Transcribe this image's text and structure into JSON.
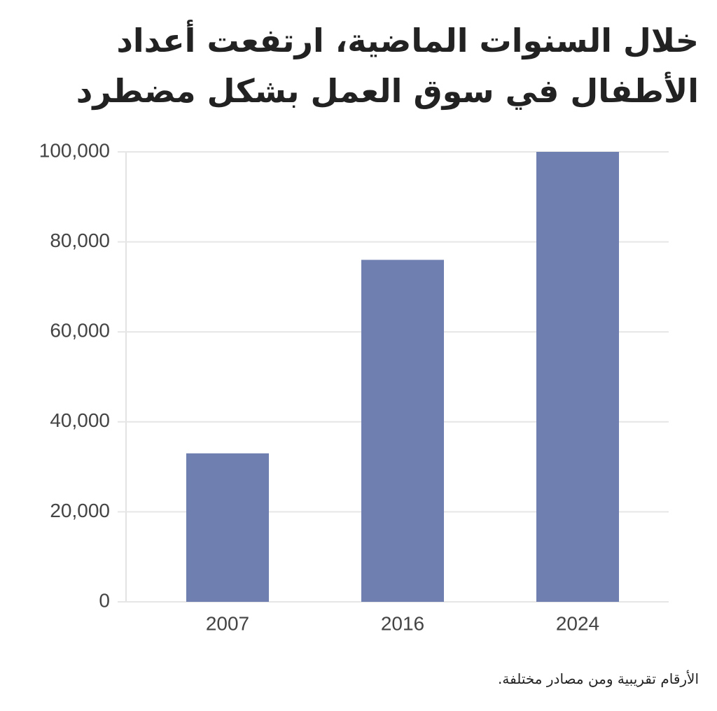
{
  "chart_data": {
    "type": "bar",
    "title": "خلال السنوات الماضية، ارتفعت أعداد الأطفال في سوق العمل بشكل مضطرد",
    "note": "الأرقام تقريبية ومن مصادر مختلفة.",
    "categories": [
      "2007",
      "2016",
      "2024"
    ],
    "values": [
      33000,
      76000,
      100000
    ],
    "color": "#6f7fb0",
    "ylim": [
      0,
      100000
    ],
    "yticks": [
      0,
      {
        "value": 20000,
        "label": "20,000"
      },
      {
        "value": 40000,
        "label": "40,000"
      },
      {
        "value": 60000,
        "label": "60,000"
      },
      {
        "value": 80000,
        "label": "80,000"
      },
      {
        "value": 100000,
        "label": "100,000"
      }
    ],
    "grid": true
  }
}
